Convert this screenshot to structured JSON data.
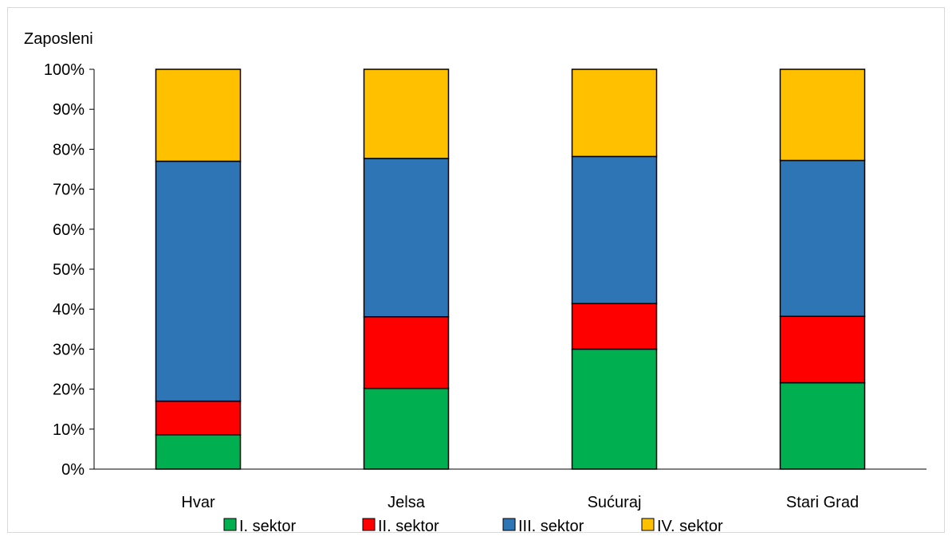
{
  "chart_data": {
    "type": "bar",
    "stacked": true,
    "percent": true,
    "ylabel": "Zaposleni",
    "xlabel": "",
    "ylim": [
      0,
      100
    ],
    "yticks": [
      "0%",
      "10%",
      "20%",
      "30%",
      "40%",
      "50%",
      "60%",
      "70%",
      "80%",
      "90%",
      "100%"
    ],
    "categories": [
      "Hvar",
      "Jelsa",
      "Sućuraj",
      "Stari Grad"
    ],
    "series": [
      {
        "name": "I. sektor",
        "color": "#00b050",
        "values": [
          8.6,
          20.2,
          30.0,
          21.6
        ]
      },
      {
        "name": "II. sektor",
        "color": "#ff0000",
        "values": [
          8.4,
          17.9,
          11.4,
          16.6
        ]
      },
      {
        "name": "III. sektor",
        "color": "#2e75b6",
        "values": [
          60.0,
          39.6,
          36.8,
          39.0
        ]
      },
      {
        "name": "IV. sektor",
        "color": "#ffc000",
        "values": [
          23.0,
          22.3,
          21.8,
          22.8
        ]
      }
    ],
    "grid": false,
    "legend": "bottom"
  }
}
